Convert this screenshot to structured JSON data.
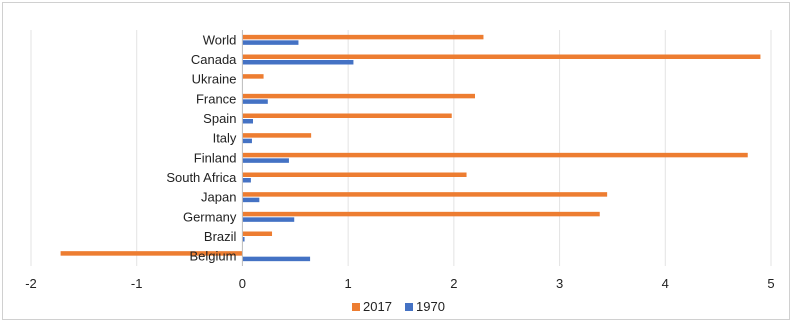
{
  "chart_data": {
    "type": "bar",
    "orientation": "horizontal",
    "title": "",
    "xlabel": "",
    "ylabel": "",
    "categories": [
      "World",
      "Canada",
      "Ukraine",
      "France",
      "Spain",
      "Italy",
      "Finland",
      "South Africa",
      "Japan",
      "Germany",
      "Brazil",
      "Belgium"
    ],
    "series": [
      {
        "name": "2017",
        "color": "#ED7D31",
        "values": [
          2.28,
          4.9,
          0.2,
          2.2,
          1.98,
          0.65,
          4.78,
          2.12,
          3.45,
          3.38,
          0.28,
          -1.72
        ]
      },
      {
        "name": "1970",
        "color": "#4472C4",
        "values": [
          0.53,
          1.05,
          0.0,
          0.24,
          0.1,
          0.09,
          0.44,
          0.08,
          0.16,
          0.49,
          0.02,
          0.64
        ]
      }
    ],
    "xlim": [
      -2,
      5
    ],
    "xticks": [
      "-2",
      "-1",
      "0",
      "1",
      "2",
      "3",
      "4",
      "5"
    ],
    "grid": true,
    "legend": "bottom"
  }
}
